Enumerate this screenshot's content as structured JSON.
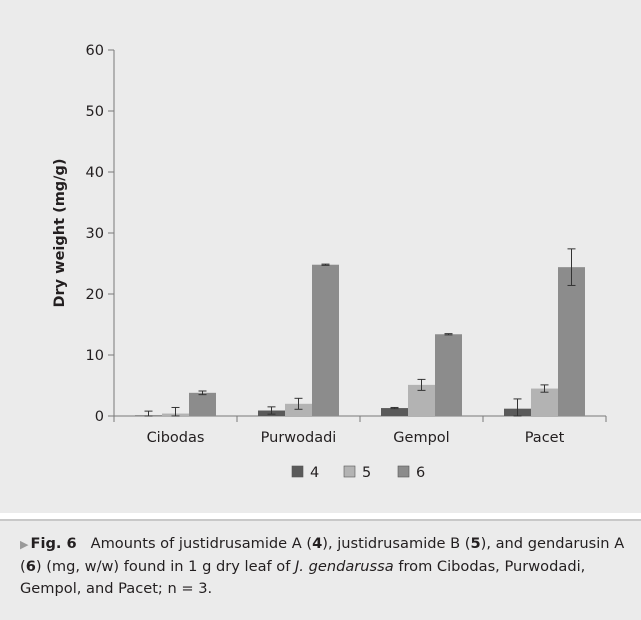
{
  "chart_data": {
    "type": "bar",
    "ylabel": "Dry weight (mg/g)",
    "xlabel": "",
    "ylim": [
      0,
      60
    ],
    "yticks": [
      0,
      10,
      20,
      30,
      40,
      50,
      60
    ],
    "categories": [
      "Cibodas",
      "Purwodadi",
      "Gempol",
      "Pacet"
    ],
    "series": [
      {
        "name": "4",
        "color": "#5a5a5a",
        "values": [
          0.1,
          0.9,
          1.3,
          1.2
        ],
        "errors": [
          0.7,
          0.6,
          0.1,
          1.6
        ]
      },
      {
        "name": "5",
        "color": "#b3b3b3",
        "values": [
          0.4,
          2.0,
          5.1,
          4.5
        ],
        "errors": [
          1.0,
          0.9,
          0.9,
          0.6
        ]
      },
      {
        "name": "6",
        "color": "#8c8c8c",
        "values": [
          3.8,
          24.8,
          13.4,
          24.4
        ],
        "errors": [
          0.3,
          0.1,
          0.1,
          3.0
        ]
      }
    ],
    "legend": "bottom",
    "grid": false
  },
  "caption": {
    "figure_label": "Fig. 6",
    "part1": "Amounts of justidrusamide A (",
    "c4": "4",
    "part2": "), justidrusamide B (",
    "c5": "5",
    "part3": "), and gendarusin A (",
    "c6": "6",
    "part4": ") (mg, w/w) found in 1 g dry leaf of ",
    "species": "J. gendarussa",
    "part5": " from Cibodas, Purwodadi, Gempol, and Pacet; n = 3."
  }
}
